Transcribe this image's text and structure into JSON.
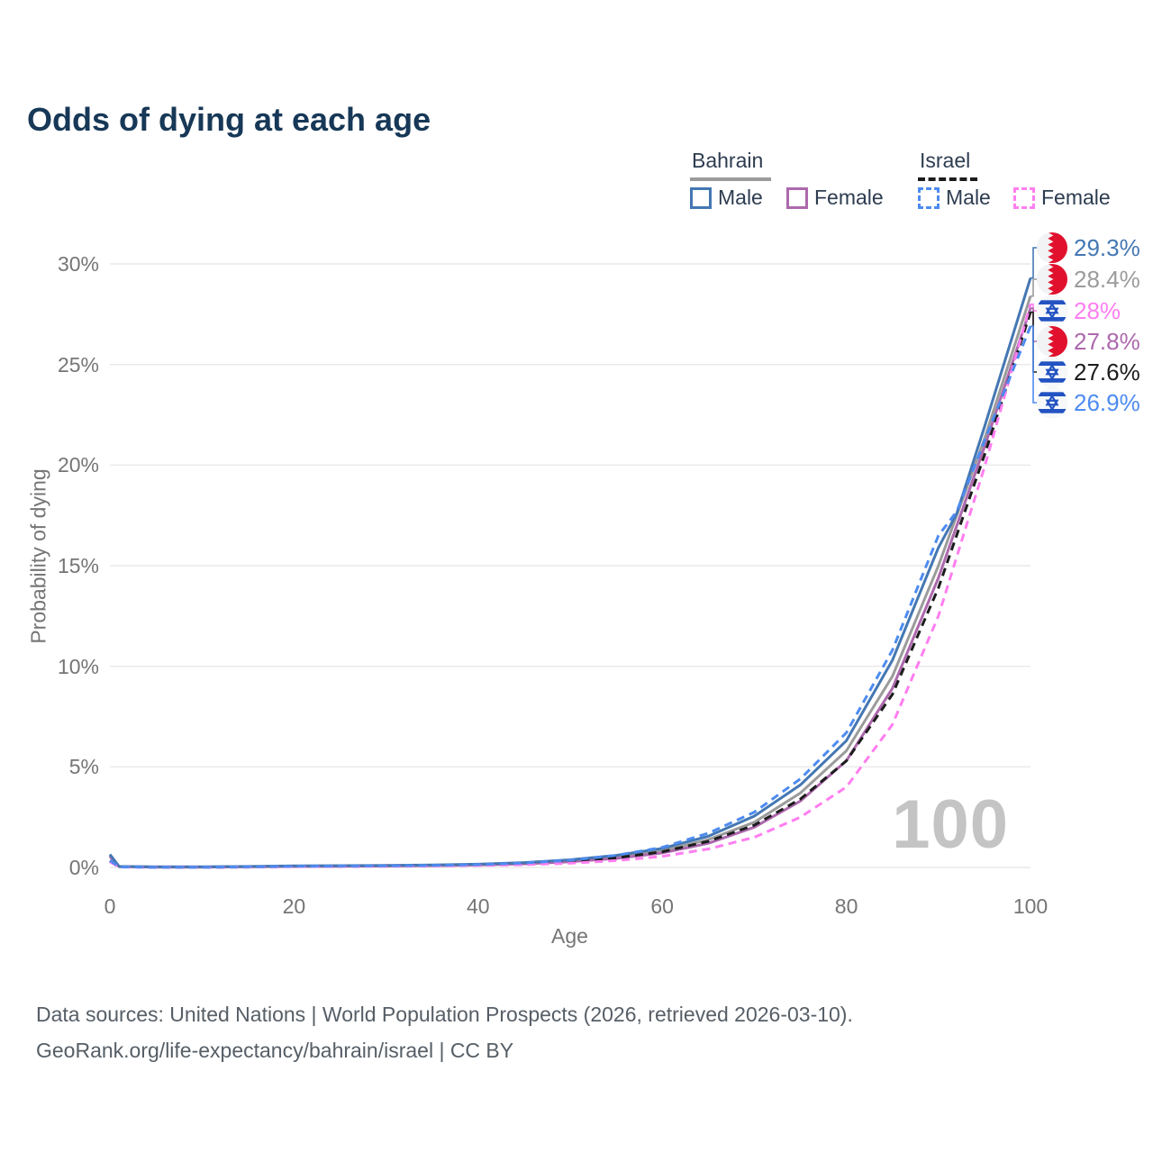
{
  "title": "Odds of dying at each age",
  "legend": {
    "groups": [
      {
        "label": "Bahrain",
        "line_style": "solid",
        "underline_color": "#9b9b9b",
        "items": [
          {
            "label": "Male",
            "color": "#4477b3",
            "dashed": false
          },
          {
            "label": "Female",
            "color": "#ad68ad",
            "dashed": false
          }
        ]
      },
      {
        "label": "Israel",
        "line_style": "dashed",
        "underline_color": "#1c1c1c",
        "items": [
          {
            "label": "Male",
            "color": "#4d8bf0",
            "dashed": true
          },
          {
            "label": "Female",
            "color": "#ff7ef0",
            "dashed": true
          }
        ]
      }
    ]
  },
  "chart_data": {
    "type": "line",
    "title": "Odds of dying at each age",
    "xlabel": "Age",
    "ylabel": "Probability of dying",
    "xlim": [
      0,
      100
    ],
    "ylim": [
      0,
      30
    ],
    "grid": "horizontal",
    "x_ticks": [
      {
        "value": 0,
        "label": "0"
      },
      {
        "value": 20,
        "label": "20"
      },
      {
        "value": 40,
        "label": "40"
      },
      {
        "value": 60,
        "label": "60"
      },
      {
        "value": 80,
        "label": "80"
      },
      {
        "value": 100,
        "label": "100"
      }
    ],
    "y_ticks": [
      {
        "value": 0,
        "label": "0%"
      },
      {
        "value": 5,
        "label": "5%"
      },
      {
        "value": 10,
        "label": "10%"
      },
      {
        "value": 15,
        "label": "15%"
      },
      {
        "value": 20,
        "label": "20%"
      },
      {
        "value": 25,
        "label": "25%"
      },
      {
        "value": 30,
        "label": "30%"
      }
    ],
    "hover_age_watermark": "100",
    "series": [
      {
        "id": "bahrain-both",
        "country": "Bahrain",
        "sex": "Both",
        "color": "#9b9b9b",
        "dashed": false,
        "points": [
          [
            0,
            0.6
          ],
          [
            1,
            0.05
          ],
          [
            5,
            0.02
          ],
          [
            10,
            0.02
          ],
          [
            15,
            0.04
          ],
          [
            20,
            0.06
          ],
          [
            25,
            0.07
          ],
          [
            30,
            0.08
          ],
          [
            35,
            0.1
          ],
          [
            40,
            0.14
          ],
          [
            45,
            0.21
          ],
          [
            50,
            0.33
          ],
          [
            55,
            0.52
          ],
          [
            60,
            0.83
          ],
          [
            65,
            1.38
          ],
          [
            70,
            2.25
          ],
          [
            75,
            3.7
          ],
          [
            80,
            5.8
          ],
          [
            85,
            9.5
          ],
          [
            90,
            15.0
          ],
          [
            95,
            21.3
          ],
          [
            100,
            28.4
          ]
        ]
      },
      {
        "id": "bahrain-female",
        "country": "Bahrain",
        "sex": "Female",
        "color": "#ad68ad",
        "dashed": false,
        "points": [
          [
            0,
            0.55
          ],
          [
            1,
            0.04
          ],
          [
            5,
            0.02
          ],
          [
            10,
            0.02
          ],
          [
            15,
            0.03
          ],
          [
            20,
            0.05
          ],
          [
            25,
            0.06
          ],
          [
            30,
            0.07
          ],
          [
            35,
            0.09
          ],
          [
            40,
            0.12
          ],
          [
            45,
            0.18
          ],
          [
            50,
            0.28
          ],
          [
            55,
            0.45
          ],
          [
            60,
            0.72
          ],
          [
            65,
            1.2
          ],
          [
            70,
            2.0
          ],
          [
            75,
            3.3
          ],
          [
            80,
            5.3
          ],
          [
            85,
            8.9
          ],
          [
            90,
            14.4
          ],
          [
            95,
            20.9
          ],
          [
            100,
            27.8
          ]
        ]
      },
      {
        "id": "bahrain-male",
        "country": "Bahrain",
        "sex": "Male",
        "color": "#4477b3",
        "dashed": false,
        "points": [
          [
            0,
            0.65
          ],
          [
            1,
            0.05
          ],
          [
            5,
            0.03
          ],
          [
            10,
            0.03
          ],
          [
            15,
            0.05
          ],
          [
            20,
            0.08
          ],
          [
            25,
            0.09
          ],
          [
            30,
            0.1
          ],
          [
            35,
            0.12
          ],
          [
            40,
            0.16
          ],
          [
            45,
            0.24
          ],
          [
            50,
            0.38
          ],
          [
            55,
            0.6
          ],
          [
            60,
            0.95
          ],
          [
            65,
            1.55
          ],
          [
            70,
            2.55
          ],
          [
            75,
            4.1
          ],
          [
            80,
            6.3
          ],
          [
            85,
            10.3
          ],
          [
            90,
            15.9
          ],
          [
            92,
            17.6
          ],
          [
            95,
            21.9
          ],
          [
            100,
            29.3
          ]
        ]
      },
      {
        "id": "israel-both",
        "country": "Israel",
        "sex": "Both",
        "color": "#1c1c1c",
        "dashed": true,
        "points": [
          [
            0,
            0.3
          ],
          [
            1,
            0.03
          ],
          [
            5,
            0.01
          ],
          [
            10,
            0.01
          ],
          [
            15,
            0.02
          ],
          [
            20,
            0.05
          ],
          [
            25,
            0.06
          ],
          [
            30,
            0.07
          ],
          [
            35,
            0.09
          ],
          [
            40,
            0.12
          ],
          [
            45,
            0.18
          ],
          [
            50,
            0.29
          ],
          [
            55,
            0.48
          ],
          [
            60,
            0.78
          ],
          [
            65,
            1.3
          ],
          [
            70,
            2.1
          ],
          [
            75,
            3.4
          ],
          [
            80,
            5.3
          ],
          [
            85,
            8.6
          ],
          [
            90,
            13.9
          ],
          [
            95,
            20.5
          ],
          [
            100,
            27.6
          ]
        ]
      },
      {
        "id": "israel-female",
        "country": "Israel",
        "sex": "Female",
        "color": "#ff7ef0",
        "dashed": true,
        "points": [
          [
            0,
            0.28
          ],
          [
            1,
            0.02
          ],
          [
            5,
            0.01
          ],
          [
            10,
            0.01
          ],
          [
            15,
            0.02
          ],
          [
            20,
            0.04
          ],
          [
            25,
            0.05
          ],
          [
            30,
            0.06
          ],
          [
            35,
            0.07
          ],
          [
            40,
            0.1
          ],
          [
            45,
            0.14
          ],
          [
            50,
            0.21
          ],
          [
            55,
            0.34
          ],
          [
            60,
            0.55
          ],
          [
            65,
            0.92
          ],
          [
            70,
            1.5
          ],
          [
            75,
            2.5
          ],
          [
            80,
            4.0
          ],
          [
            85,
            7.1
          ],
          [
            90,
            12.5
          ],
          [
            95,
            19.9
          ],
          [
            100,
            28.0
          ]
        ]
      },
      {
        "id": "israel-male",
        "country": "Israel",
        "sex": "Male",
        "color": "#4d8bf0",
        "dashed": true,
        "points": [
          [
            0,
            0.35
          ],
          [
            1,
            0.03
          ],
          [
            5,
            0.01
          ],
          [
            10,
            0.01
          ],
          [
            15,
            0.03
          ],
          [
            20,
            0.06
          ],
          [
            25,
            0.07
          ],
          [
            30,
            0.08
          ],
          [
            35,
            0.1
          ],
          [
            40,
            0.14
          ],
          [
            45,
            0.22
          ],
          [
            50,
            0.36
          ],
          [
            55,
            0.6
          ],
          [
            60,
            1.0
          ],
          [
            65,
            1.7
          ],
          [
            70,
            2.75
          ],
          [
            75,
            4.4
          ],
          [
            80,
            6.7
          ],
          [
            85,
            10.8
          ],
          [
            90,
            16.5
          ],
          [
            92,
            17.7
          ],
          [
            95,
            21.2
          ],
          [
            100,
            26.9
          ]
        ]
      }
    ],
    "end_labels": [
      {
        "text": "29.3%",
        "flag": "bahrain",
        "series": "bahrain-male",
        "color": "#4477b3"
      },
      {
        "text": "28.4%",
        "flag": "bahrain",
        "series": "bahrain-both",
        "color": "#9b9b9b"
      },
      {
        "text": "28%",
        "flag": "israel",
        "series": "israel-female",
        "color": "#ff7ef0"
      },
      {
        "text": "27.8%",
        "flag": "bahrain",
        "series": "bahrain-female",
        "color": "#ad68ad"
      },
      {
        "text": "27.6%",
        "flag": "israel",
        "series": "israel-both",
        "color": "#1c1c1c"
      },
      {
        "text": "26.9%",
        "flag": "israel",
        "series": "israel-male",
        "color": "#4d8bf0"
      }
    ]
  },
  "footer": {
    "line1": "Data sources: United Nations | World Population Prospects (2026, retrieved 2026-03-10).",
    "line2": "GeoRank.org/life-expectancy/bahrain/israel | CC BY"
  }
}
